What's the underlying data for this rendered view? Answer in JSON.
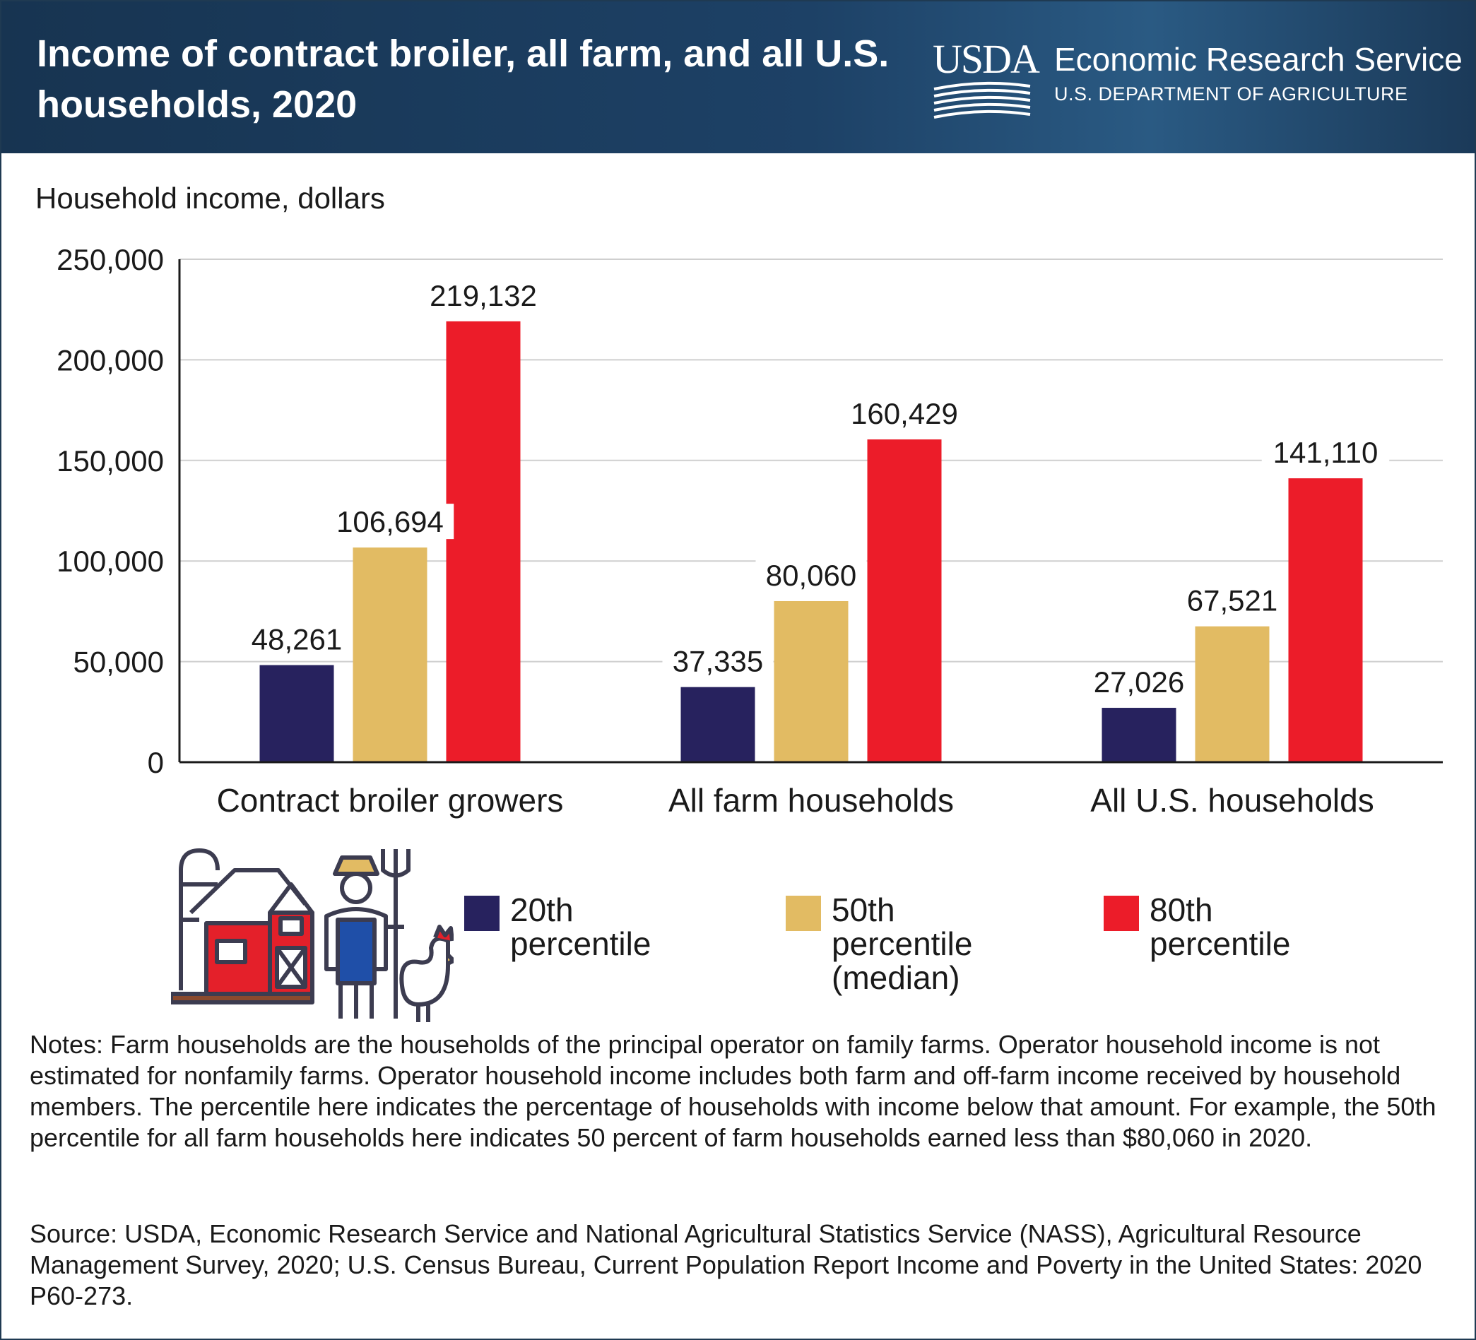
{
  "header": {
    "title": "Income of contract broiler, all farm, and all U.S. households, 2020",
    "logo_text": "USDA",
    "agency_name": "Economic Research Service",
    "department": "U.S. DEPARTMENT OF AGRICULTURE"
  },
  "chart_data": {
    "type": "bar",
    "title": "Income of contract broiler, all farm, and all U.S. households, 2020",
    "ylabel": "Household income, dollars",
    "xlabel": "",
    "ylim": [
      0,
      250000
    ],
    "yticks": [
      0,
      50000,
      100000,
      150000,
      200000,
      250000
    ],
    "ytick_labels": [
      "0",
      "50,000",
      "100,000",
      "150,000",
      "200,000",
      "250,000"
    ],
    "categories": [
      "Contract broiler growers",
      "All farm households",
      "All U.S. households"
    ],
    "series": [
      {
        "name": "20th percentile",
        "color": "#27225e",
        "values": [
          48261,
          37335,
          27026
        ],
        "labels": [
          "48,261",
          "37,335",
          "27,026"
        ]
      },
      {
        "name": "50th percentile\n(median)",
        "color": "#e2bb63",
        "values": [
          106694,
          80060,
          67521
        ],
        "labels": [
          "106,694",
          "80,060",
          "67,521"
        ]
      },
      {
        "name": "80th percentile",
        "color": "#ec1c29",
        "values": [
          219132,
          160429,
          141110
        ],
        "labels": [
          "219,132",
          "160,429",
          "141,110"
        ]
      }
    ],
    "grid": true,
    "legend_position": "bottom"
  },
  "illustration": {
    "icons": [
      "barn-silo-icon",
      "farmer-with-pitchfork-icon",
      "chicken-icon"
    ],
    "colors": {
      "outline": "#3c3c50",
      "red": "#e4202a",
      "blue": "#1f4fa8",
      "brown": "#8a4a2e",
      "yellow": "#e2bb63"
    }
  },
  "notes": "Notes: Farm households are the households of the principal operator on family farms. Operator household income is not estimated for nonfamily farms. Operator household income includes both farm and off-farm income received by household members. The percentile here indicates the percentage of households with income below that amount. For example, the 50th percentile for all farm households here indicates 50 percent of farm households earned less than $80,060 in 2020.",
  "source": "Source: USDA, Economic Research Service and National Agricultural Statistics Service (NASS), Agricultural Resource Management Survey, 2020; U.S. Census Bureau, Current Population Report Income and Poverty in the United States: 2020 P60-273."
}
